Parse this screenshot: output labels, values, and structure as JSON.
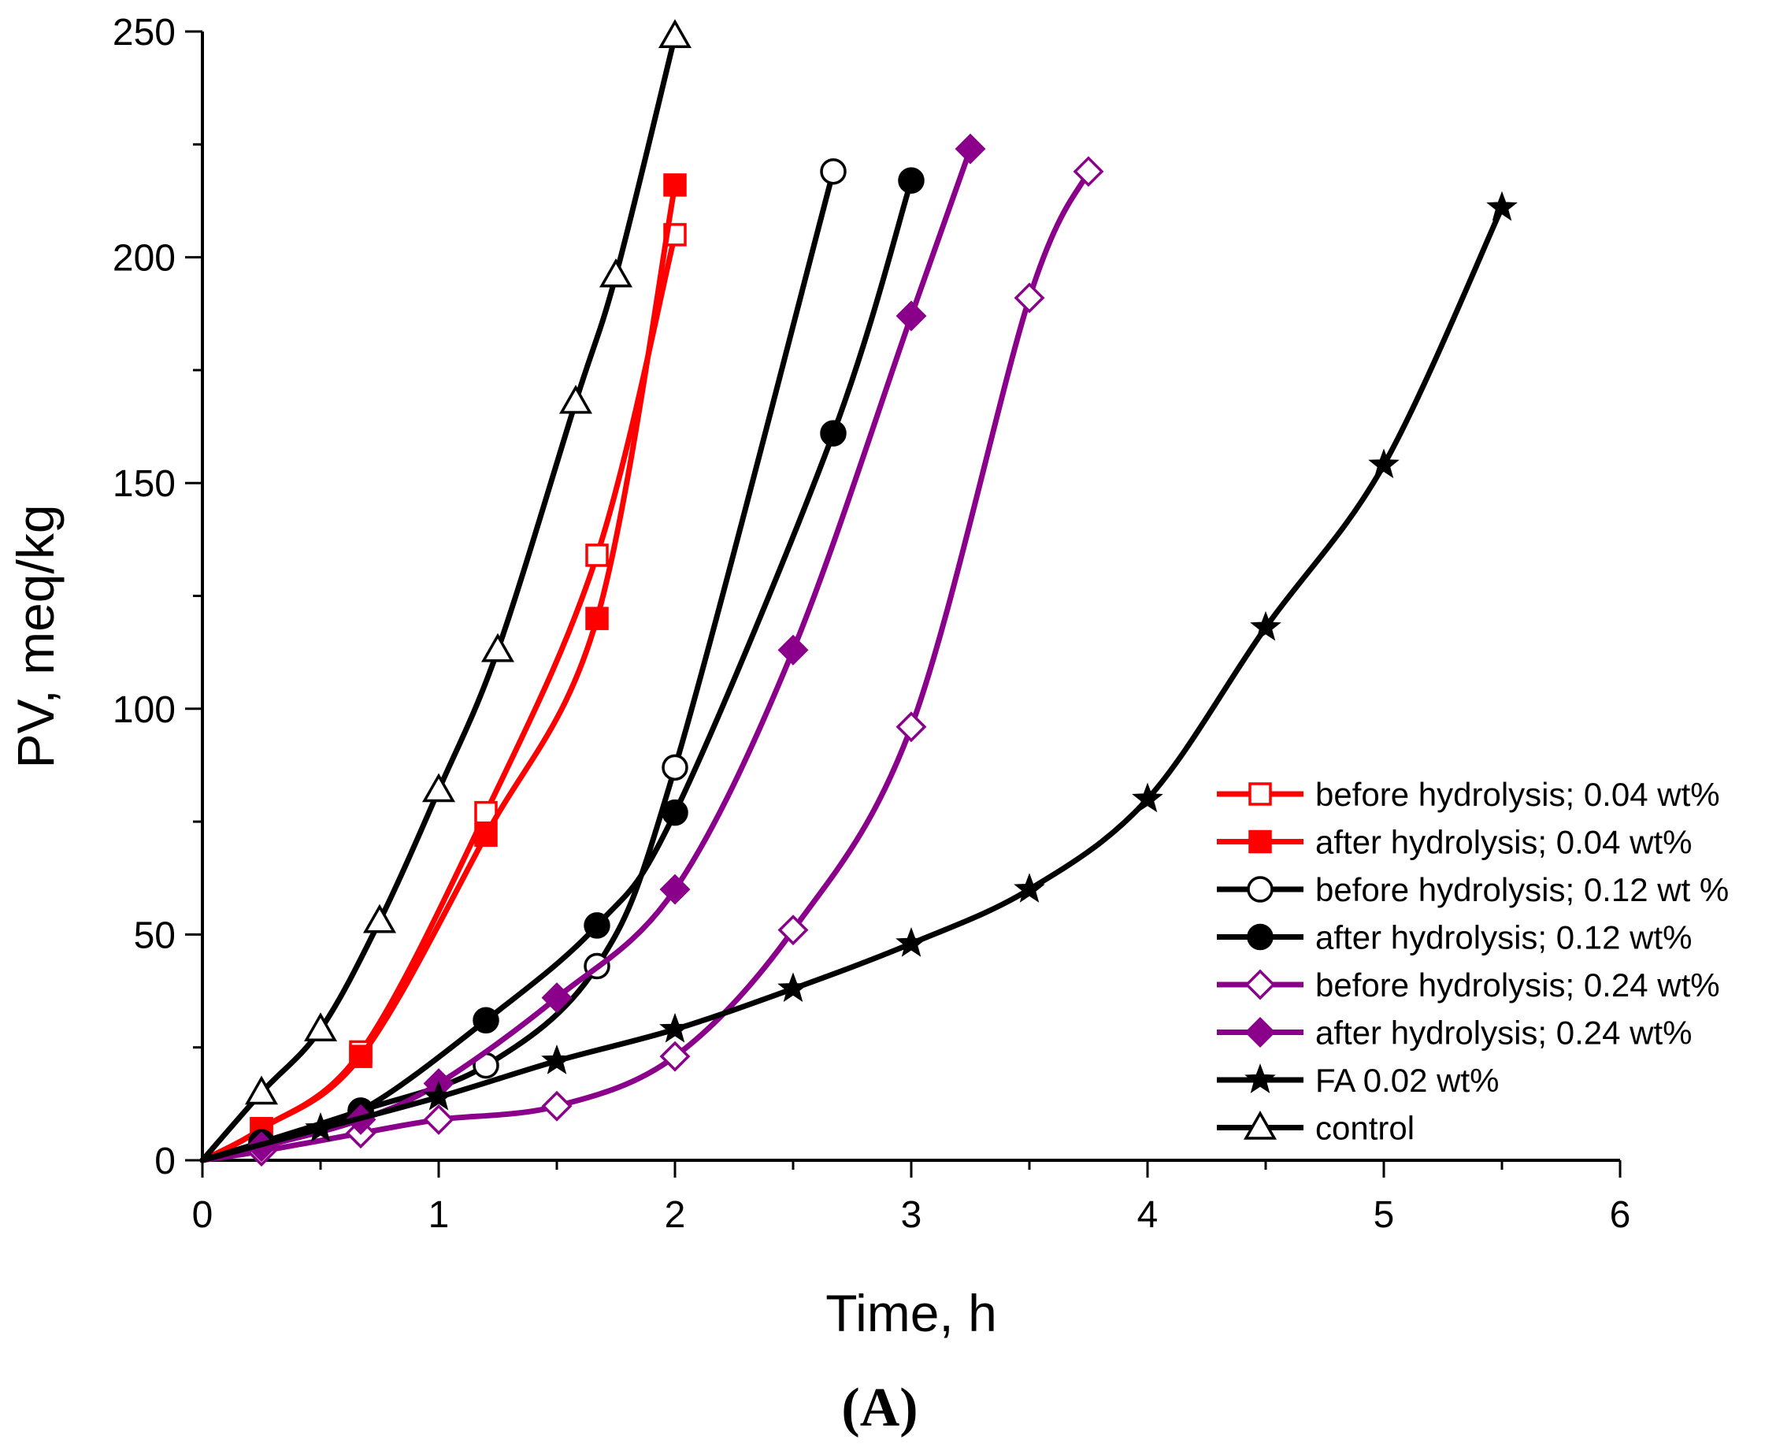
{
  "chart_data": {
    "type": "line",
    "title": "",
    "xlabel": "Time, h",
    "ylabel": "PV, meq/kg",
    "caption": "(A)",
    "xlim": [
      0,
      6
    ],
    "ylim": [
      0,
      250
    ],
    "xticks": [
      0,
      1,
      2,
      3,
      4,
      5,
      6
    ],
    "yticks": [
      0,
      50,
      100,
      150,
      200,
      250
    ],
    "grid": false,
    "legend_position": "lower-right",
    "series": [
      {
        "name": "before hydrolysis; 0.04 wt%",
        "color": "#ff0000",
        "marker": "square-open",
        "x": [
          0,
          0.25,
          0.67,
          1.2,
          1.67,
          2.0
        ],
        "y": [
          0,
          7,
          24,
          77,
          134,
          205
        ]
      },
      {
        "name": "after hydrolysis; 0.04 wt%",
        "color": "#ff0000",
        "marker": "square-filled",
        "x": [
          0,
          0.25,
          0.67,
          1.2,
          1.67,
          2.0
        ],
        "y": [
          0,
          7,
          23,
          72,
          120,
          216
        ]
      },
      {
        "name": "before hydrolysis; 0.12 wt %",
        "color": "#000000",
        "marker": "circle-open",
        "x": [
          0,
          0.25,
          0.67,
          1.2,
          1.67,
          2.0,
          2.67
        ],
        "y": [
          0,
          4,
          11,
          21,
          43,
          87,
          219
        ]
      },
      {
        "name": "after hydrolysis; 0.12 wt%",
        "color": "#000000",
        "marker": "circle-filled",
        "x": [
          0,
          0.25,
          0.67,
          1.2,
          1.67,
          2.0,
          2.67,
          3.0
        ],
        "y": [
          0,
          4,
          11,
          31,
          52,
          77,
          161,
          217
        ]
      },
      {
        "name": "before hydrolysis; 0.24 wt%",
        "color": "#8b008b",
        "marker": "diamond-open",
        "x": [
          0,
          0.25,
          0.67,
          1.0,
          1.5,
          2.0,
          2.5,
          3.0,
          3.5,
          3.75
        ],
        "y": [
          0,
          2,
          6,
          9,
          12,
          23,
          51,
          96,
          191,
          219
        ]
      },
      {
        "name": "after hydrolysis; 0.24 wt%",
        "color": "#8b008b",
        "marker": "diamond-filled",
        "x": [
          0,
          0.25,
          0.67,
          1.0,
          1.5,
          2.0,
          2.5,
          3.0,
          3.25
        ],
        "y": [
          0,
          3,
          9,
          17,
          36,
          60,
          113,
          187,
          224
        ]
      },
      {
        "name": "FA 0.02 wt%",
        "color": "#000000",
        "marker": "star",
        "x": [
          0,
          0.5,
          1.0,
          1.5,
          2.0,
          2.5,
          3.0,
          3.5,
          4.0,
          4.5,
          5.0,
          5.5
        ],
        "y": [
          0,
          7,
          14,
          22,
          29,
          38,
          48,
          60,
          80,
          118,
          154,
          211
        ]
      },
      {
        "name": "control",
        "color": "#000000",
        "marker": "triangle-open",
        "x": [
          0,
          0.25,
          0.5,
          0.75,
          1.0,
          1.25,
          1.58,
          1.75,
          2.0
        ],
        "y": [
          0,
          15,
          29,
          53,
          82,
          113,
          168,
          196,
          249
        ]
      }
    ]
  }
}
